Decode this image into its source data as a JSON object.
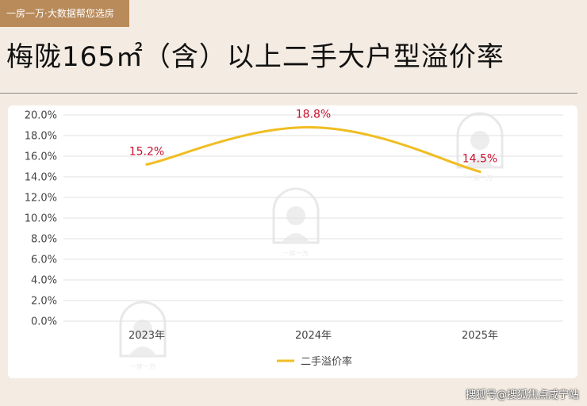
{
  "header": {
    "brand_tag": "一房一万·大数据帮您选房",
    "title": "梅陇165㎡（含）以上二手大户型溢价率"
  },
  "watermark_text": "一房一万",
  "footer": {
    "credit": "搜狐号@搜狐焦点咸宁站"
  },
  "colors": {
    "line": "#f0bd22",
    "data_label": "#c8102e",
    "grid": "#e2e2e2",
    "brand": "#b98a5a"
  },
  "chart_data": {
    "type": "line",
    "categories": [
      "2023年",
      "2024年",
      "2025年"
    ],
    "series": [
      {
        "name": "二手溢价率",
        "values": [
          15.2,
          18.8,
          14.5
        ],
        "labels": [
          "15.2%",
          "18.8%",
          "14.5%"
        ]
      }
    ],
    "ylim": [
      0,
      20
    ],
    "y_ticks": [
      "0.0%",
      "2.0%",
      "4.0%",
      "6.0%",
      "8.0%",
      "10.0%",
      "12.0%",
      "14.0%",
      "16.0%",
      "18.0%",
      "20.0%"
    ],
    "smooth": true,
    "grid": true,
    "legend_position": "bottom-center"
  }
}
